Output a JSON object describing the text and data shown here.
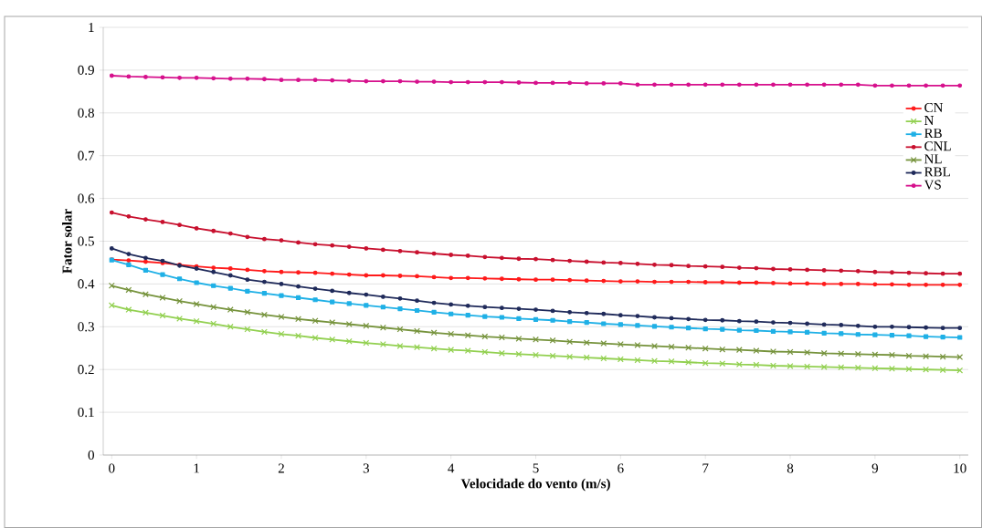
{
  "chart_data": {
    "type": "line",
    "xlabel": "Velocidade do vento (m/s)",
    "ylabel": "Fator solar",
    "x": [
      0,
      0.2,
      0.4,
      0.6,
      0.8,
      1,
      1.2,
      1.4,
      1.6,
      1.8,
      2,
      2.2,
      2.4,
      2.6,
      2.8,
      3,
      3.2,
      3.4,
      3.6,
      3.8,
      4,
      4.2,
      4.4,
      4.6,
      4.8,
      5,
      5.2,
      5.4,
      5.6,
      5.8,
      6,
      6.2,
      6.4,
      6.6,
      6.8,
      7,
      7.2,
      7.4,
      7.6,
      7.8,
      8,
      8.2,
      8.4,
      8.6,
      8.8,
      9,
      9.2,
      9.4,
      9.6,
      9.8,
      10
    ],
    "xlim": [
      -0.1,
      10.1
    ],
    "xticks": [
      0,
      1,
      2,
      3,
      4,
      5,
      6,
      7,
      8,
      9,
      10
    ],
    "ylim": [
      0,
      1
    ],
    "yticks": [
      0,
      0.1,
      0.2,
      0.3,
      0.4,
      0.5,
      0.6,
      0.7,
      0.8,
      0.9,
      1
    ],
    "grid": "y",
    "legend": "right",
    "line_style": "solid",
    "series": [
      {
        "name": "CN",
        "color": "#ff1a1a",
        "marker": "circle",
        "values": [
          0.457,
          0.455,
          0.452,
          0.449,
          0.445,
          0.441,
          0.438,
          0.436,
          0.433,
          0.43,
          0.428,
          0.427,
          0.426,
          0.424,
          0.422,
          0.42,
          0.42,
          0.419,
          0.418,
          0.416,
          0.414,
          0.414,
          0.413,
          0.412,
          0.411,
          0.41,
          0.41,
          0.409,
          0.408,
          0.407,
          0.406,
          0.406,
          0.405,
          0.405,
          0.405,
          0.404,
          0.404,
          0.403,
          0.403,
          0.402,
          0.401,
          0.401,
          0.4,
          0.4,
          0.4,
          0.399,
          0.399,
          0.398,
          0.398,
          0.398,
          0.398
        ]
      },
      {
        "name": "N",
        "color": "#92d050",
        "marker": "cross",
        "values": [
          0.35,
          0.34,
          0.333,
          0.326,
          0.319,
          0.313,
          0.307,
          0.3,
          0.294,
          0.288,
          0.283,
          0.279,
          0.274,
          0.27,
          0.266,
          0.262,
          0.259,
          0.255,
          0.252,
          0.249,
          0.246,
          0.244,
          0.241,
          0.238,
          0.236,
          0.234,
          0.232,
          0.23,
          0.228,
          0.226,
          0.224,
          0.222,
          0.22,
          0.219,
          0.217,
          0.215,
          0.214,
          0.212,
          0.211,
          0.209,
          0.208,
          0.207,
          0.206,
          0.205,
          0.204,
          0.203,
          0.202,
          0.201,
          0.2,
          0.199,
          0.198
        ]
      },
      {
        "name": "RB",
        "color": "#1fb0e6",
        "marker": "square",
        "values": [
          0.456,
          0.445,
          0.432,
          0.422,
          0.412,
          0.403,
          0.396,
          0.39,
          0.383,
          0.378,
          0.373,
          0.368,
          0.363,
          0.358,
          0.354,
          0.35,
          0.346,
          0.342,
          0.338,
          0.334,
          0.33,
          0.327,
          0.324,
          0.322,
          0.319,
          0.317,
          0.315,
          0.312,
          0.31,
          0.307,
          0.305,
          0.303,
          0.301,
          0.299,
          0.297,
          0.295,
          0.294,
          0.292,
          0.291,
          0.289,
          0.288,
          0.287,
          0.285,
          0.284,
          0.282,
          0.281,
          0.28,
          0.279,
          0.277,
          0.276,
          0.275
        ]
      },
      {
        "name": "CNL",
        "color": "#c8102e",
        "marker": "circle",
        "values": [
          0.567,
          0.558,
          0.551,
          0.545,
          0.538,
          0.53,
          0.524,
          0.518,
          0.51,
          0.505,
          0.502,
          0.497,
          0.493,
          0.49,
          0.487,
          0.483,
          0.48,
          0.477,
          0.474,
          0.471,
          0.468,
          0.466,
          0.463,
          0.461,
          0.459,
          0.458,
          0.456,
          0.454,
          0.452,
          0.45,
          0.449,
          0.447,
          0.445,
          0.444,
          0.442,
          0.441,
          0.44,
          0.438,
          0.437,
          0.435,
          0.434,
          0.433,
          0.432,
          0.431,
          0.43,
          0.428,
          0.427,
          0.426,
          0.425,
          0.424,
          0.424
        ]
      },
      {
        "name": "NL",
        "color": "#76933c",
        "marker": "cross",
        "values": [
          0.396,
          0.386,
          0.376,
          0.368,
          0.36,
          0.353,
          0.346,
          0.34,
          0.334,
          0.328,
          0.323,
          0.318,
          0.314,
          0.31,
          0.306,
          0.302,
          0.298,
          0.294,
          0.29,
          0.286,
          0.283,
          0.28,
          0.277,
          0.275,
          0.272,
          0.27,
          0.268,
          0.265,
          0.263,
          0.261,
          0.259,
          0.257,
          0.255,
          0.253,
          0.251,
          0.249,
          0.247,
          0.246,
          0.244,
          0.242,
          0.241,
          0.24,
          0.238,
          0.237,
          0.236,
          0.235,
          0.234,
          0.232,
          0.231,
          0.23,
          0.229
        ]
      },
      {
        "name": "RBL",
        "color": "#1f2a5a",
        "marker": "circle",
        "values": [
          0.483,
          0.47,
          0.461,
          0.454,
          0.443,
          0.436,
          0.428,
          0.42,
          0.41,
          0.405,
          0.4,
          0.394,
          0.389,
          0.384,
          0.379,
          0.375,
          0.37,
          0.366,
          0.361,
          0.356,
          0.352,
          0.349,
          0.346,
          0.344,
          0.342,
          0.34,
          0.337,
          0.334,
          0.332,
          0.33,
          0.327,
          0.325,
          0.322,
          0.32,
          0.318,
          0.316,
          0.315,
          0.313,
          0.312,
          0.31,
          0.309,
          0.307,
          0.305,
          0.304,
          0.302,
          0.3,
          0.3,
          0.299,
          0.298,
          0.297,
          0.297
        ]
      },
      {
        "name": "VS",
        "color": "#d6108c",
        "marker": "circle",
        "values": [
          0.887,
          0.885,
          0.884,
          0.883,
          0.882,
          0.882,
          0.881,
          0.88,
          0.88,
          0.879,
          0.877,
          0.877,
          0.877,
          0.876,
          0.875,
          0.874,
          0.874,
          0.874,
          0.873,
          0.873,
          0.872,
          0.872,
          0.872,
          0.872,
          0.871,
          0.87,
          0.87,
          0.87,
          0.869,
          0.869,
          0.869,
          0.866,
          0.866,
          0.866,
          0.866,
          0.866,
          0.866,
          0.866,
          0.866,
          0.866,
          0.866,
          0.866,
          0.866,
          0.866,
          0.866,
          0.864,
          0.864,
          0.864,
          0.864,
          0.864,
          0.864
        ]
      }
    ]
  }
}
